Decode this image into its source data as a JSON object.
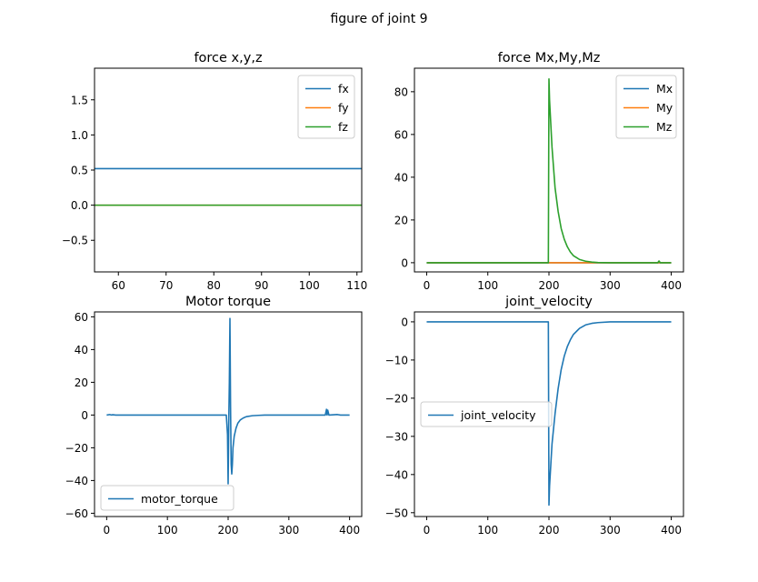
{
  "figure": {
    "suptitle": "figure of joint 9"
  },
  "colors": {
    "blue": "#1f77b4",
    "orange": "#ff7f0e",
    "green": "#2ca02c"
  },
  "chart_data": [
    {
      "type": "line",
      "title": "force x,y,z",
      "xlabel": "",
      "ylabel": "",
      "xlim": [
        55,
        111
      ],
      "ylim": [
        -0.95,
        1.95
      ],
      "xticks": [
        60,
        70,
        80,
        90,
        100,
        110
      ],
      "yticks": [
        -0.5,
        0.0,
        0.5,
        1.0,
        1.5
      ],
      "ytick_labels": [
        "−0.5",
        "0.0",
        "0.5",
        "1.0",
        "1.5"
      ],
      "legend": "top-right",
      "series": [
        {
          "name": "fx",
          "color": "#1f77b4",
          "x": [
            55,
            111
          ],
          "y": [
            0.52,
            0.52
          ]
        },
        {
          "name": "fy",
          "color": "#ff7f0e",
          "x": [
            55,
            111
          ],
          "y": [
            0,
            0
          ]
        },
        {
          "name": "fz",
          "color": "#2ca02c",
          "x": [
            55,
            111
          ],
          "y": [
            0,
            0
          ]
        }
      ]
    },
    {
      "type": "line",
      "title": "force Mx,My,Mz",
      "xlabel": "",
      "ylabel": "",
      "xlim": [
        -20,
        420
      ],
      "ylim": [
        -4.3,
        91
      ],
      "xticks": [
        0,
        100,
        200,
        300,
        400
      ],
      "yticks": [
        0,
        20,
        40,
        60,
        80
      ],
      "ytick_labels": [
        "0",
        "20",
        "40",
        "60",
        "80"
      ],
      "legend": "top-right",
      "series": [
        {
          "name": "Mx",
          "color": "#1f77b4",
          "x": [
            0,
            400
          ],
          "y": [
            0,
            0
          ]
        },
        {
          "name": "My",
          "color": "#ff7f0e",
          "x": [
            0,
            400
          ],
          "y": [
            0,
            0
          ]
        },
        {
          "name": "Mz",
          "color": "#2ca02c",
          "x": [
            0,
            199,
            200,
            201,
            205,
            210,
            215,
            220,
            225,
            230,
            235,
            240,
            250,
            260,
            270,
            280,
            300,
            350,
            378,
            380,
            382,
            400
          ],
          "y": [
            0,
            0,
            86,
            76,
            54,
            35,
            24,
            16,
            11,
            7.5,
            5,
            3.3,
            1.5,
            0.7,
            0.3,
            0.1,
            0,
            0,
            0,
            0.8,
            0,
            0
          ]
        }
      ]
    },
    {
      "type": "line",
      "title": "Motor torque",
      "xlabel": "",
      "ylabel": "",
      "xlim": [
        -20,
        420
      ],
      "ylim": [
        -62,
        63
      ],
      "xticks": [
        0,
        100,
        200,
        300,
        400
      ],
      "yticks": [
        -60,
        -40,
        -20,
        0,
        20,
        40,
        60
      ],
      "ytick_labels": [
        "−60",
        "−40",
        "−20",
        "0",
        "20",
        "40",
        "60"
      ],
      "legend": "lower-left",
      "series": [
        {
          "name": "motor_torque",
          "color": "#1f77b4",
          "x": [
            0,
            5,
            8,
            10,
            15,
            197,
            199,
            200,
            201,
            202,
            203,
            204,
            205,
            206,
            207,
            208,
            210,
            213,
            216,
            220,
            225,
            230,
            240,
            250,
            260,
            280,
            300,
            360,
            362,
            363,
            364,
            366,
            380,
            385,
            400
          ],
          "y": [
            0,
            0.3,
            0,
            0.2,
            0,
            0,
            -12,
            -42,
            -5,
            20,
            59,
            5,
            -30,
            -36,
            -30,
            -20,
            -13,
            -8,
            -5,
            -3,
            -1.8,
            -1,
            -0.4,
            -0.2,
            0,
            0,
            0,
            0,
            3.5,
            0,
            3,
            0,
            0.3,
            0,
            0
          ]
        }
      ]
    },
    {
      "type": "line",
      "title": "joint_velocity",
      "xlabel": "",
      "ylabel": "",
      "xlim": [
        -20,
        420
      ],
      "ylim": [
        -51,
        2.6
      ],
      "xticks": [
        0,
        100,
        200,
        300,
        400
      ],
      "yticks": [
        -50,
        -40,
        -30,
        -20,
        -10,
        0
      ],
      "ytick_labels": [
        "−50",
        "−40",
        "−30",
        "−20",
        "−10",
        "0"
      ],
      "legend": "center-left",
      "series": [
        {
          "name": "joint_velocity",
          "color": "#1f77b4",
          "x": [
            0,
            199,
            200,
            201,
            205,
            210,
            215,
            220,
            225,
            230,
            235,
            240,
            250,
            260,
            270,
            280,
            300,
            400
          ],
          "y": [
            0,
            0,
            -48,
            -43,
            -32,
            -24,
            -17.5,
            -12.5,
            -9,
            -6.5,
            -4.7,
            -3.3,
            -1.7,
            -0.8,
            -0.4,
            -0.2,
            0,
            0
          ]
        }
      ]
    }
  ]
}
